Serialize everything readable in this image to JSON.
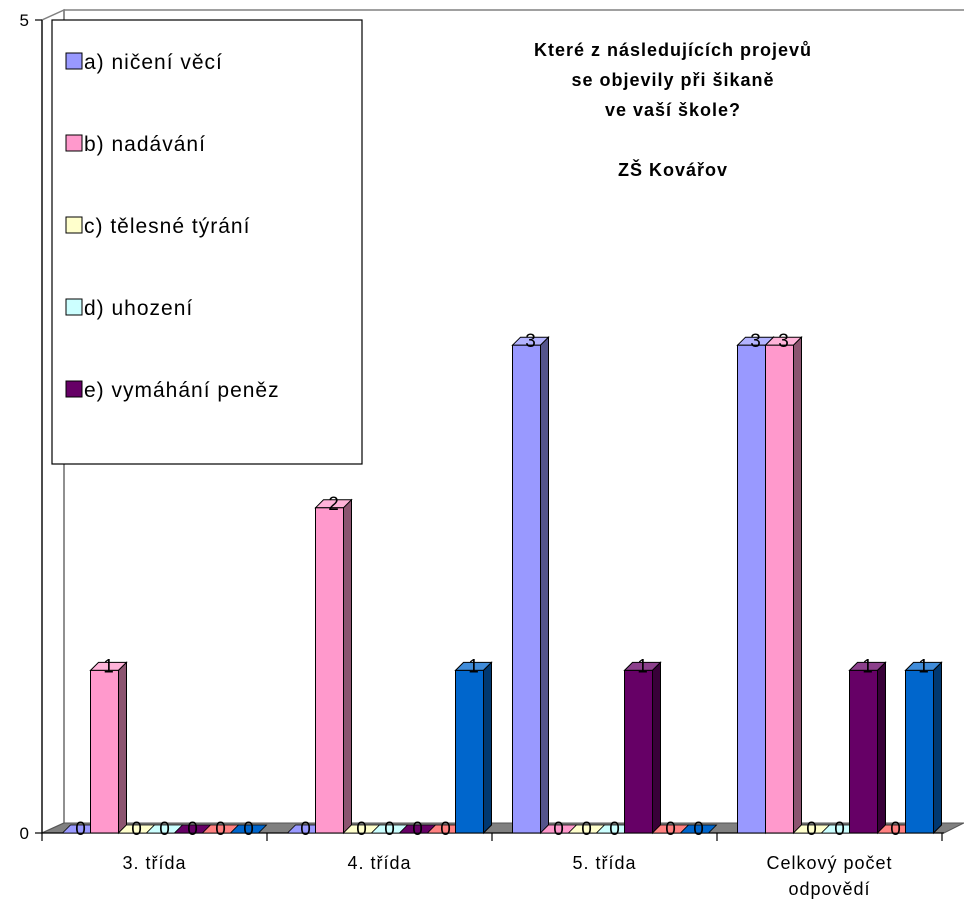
{
  "chart_data": {
    "type": "bar",
    "title_lines": [
      "Které z následujících projevů",
      "se objevily při šikaně",
      "ve vaší škole?",
      "",
      "ZŠ Kovářov"
    ],
    "categories": [
      "3. třída",
      "4. třída",
      "5. třída",
      "Celkový počet odpovědí"
    ],
    "ylim": [
      0,
      5
    ],
    "yticks": [
      0,
      5
    ],
    "grid": false,
    "legend_position": "top-left",
    "series": [
      {
        "name": "a) ničení věcí",
        "values": [
          0,
          0,
          3,
          3
        ],
        "color": "#9999ff",
        "in_legend": true
      },
      {
        "name": "b) nadávání",
        "values": [
          1,
          2,
          0,
          3
        ],
        "color": "#ff99cc",
        "in_legend": true
      },
      {
        "name": "c) tělesné týrání",
        "values": [
          0,
          0,
          0,
          0
        ],
        "color": "#ffffcc",
        "in_legend": true
      },
      {
        "name": "d) uhození",
        "values": [
          0,
          0,
          0,
          0
        ],
        "color": "#ccffff",
        "in_legend": true
      },
      {
        "name": "e) vymáhání peněz",
        "values": [
          0,
          0,
          1,
          1
        ],
        "color": "#660066",
        "in_legend": true
      },
      {
        "name": "",
        "values": [
          0,
          0,
          0,
          0
        ],
        "color": "#ff8080",
        "in_legend": false
      },
      {
        "name": "",
        "values": [
          0,
          1,
          0,
          1
        ],
        "color": "#0066cc",
        "in_legend": false
      }
    ]
  }
}
